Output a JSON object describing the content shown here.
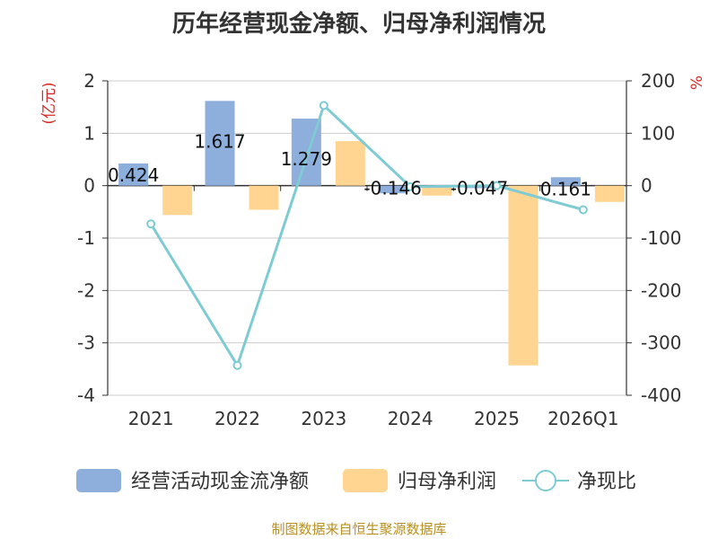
{
  "title": "历年经营现金净额、归母净利润情况",
  "source": "制图数据来自恒生聚源数据库",
  "colors": {
    "cash_flow": "#8eaedb",
    "profit": "#ffd591",
    "ratio_line": "#7fcbd3",
    "unit": "#d42a2a",
    "axis": "#333333",
    "grid": "#cccccc"
  },
  "chart_data": {
    "type": "bar+line",
    "categories": [
      "2021",
      "2022",
      "2023",
      "2024",
      "2025",
      "2026Q1"
    ],
    "series": [
      {
        "name": "经营活动现金流净额",
        "type": "bar",
        "axis": "left",
        "values": [
          0.424,
          1.617,
          1.279,
          -0.146,
          -0.047,
          0.161
        ],
        "labels": [
          "0.424",
          "1.617",
          "1.279",
          "-0.146",
          "-0.047",
          "0.161"
        ]
      },
      {
        "name": "归母净利润",
        "type": "bar",
        "axis": "left",
        "values": [
          -0.56,
          -0.46,
          0.85,
          -0.19,
          -3.43,
          -0.31
        ]
      },
      {
        "name": "净现比",
        "type": "line",
        "axis": "right",
        "values": [
          -73,
          -343,
          153,
          -2,
          0,
          -46
        ]
      }
    ],
    "left_axis": {
      "label": "(亿元)",
      "ylim": [
        -4,
        2
      ],
      "ticks": [
        "2",
        "1",
        "0",
        "-1",
        "-2",
        "-3",
        "-4"
      ]
    },
    "right_axis": {
      "label": "%",
      "ylim": [
        -400,
        200
      ],
      "ticks": [
        "200",
        "100",
        "0",
        "-100",
        "-200",
        "-300",
        "-400"
      ]
    },
    "legend": [
      "经营活动现金流净额",
      "归母净利润",
      "净现比"
    ],
    "legend_position": "bottom",
    "grid": true
  }
}
